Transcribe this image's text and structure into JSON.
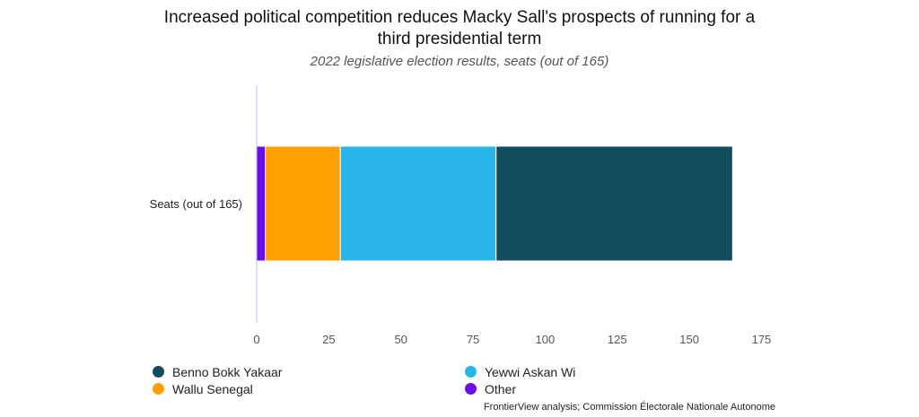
{
  "title_line1": "Increased political competition reduces Macky Sall's prospects of running for a",
  "title_line2": "third presidential term",
  "subtitle": "2022 legislative election results, seats (out of 165)",
  "source": "FrontierView analysis; Commission Électorale Nationale Autonome",
  "chart_data": {
    "type": "bar",
    "orientation": "horizontal",
    "stacked": true,
    "categories": [
      "Seats (out of 165)"
    ],
    "series": [
      {
        "name": "Other",
        "values": [
          3
        ],
        "color": "#6a0dea"
      },
      {
        "name": "Wallu Senegal",
        "values": [
          26
        ],
        "color": "#ff9f00"
      },
      {
        "name": "Yewwi Askan Wi",
        "values": [
          54
        ],
        "color": "#28b6e9"
      },
      {
        "name": "Benno Bokk Yakaar",
        "values": [
          82
        ],
        "color": "#124c5f"
      }
    ],
    "xlim": [
      0,
      175
    ],
    "xticks": [
      0,
      25,
      50,
      75,
      100,
      125,
      150,
      175
    ],
    "grid": false,
    "legend_position": "bottom"
  },
  "legend": {
    "left": [
      {
        "name": "Benno Bokk Yakaar",
        "color": "#124c5f"
      },
      {
        "name": "Wallu Senegal",
        "color": "#ff9f00"
      }
    ],
    "right": [
      {
        "name": "Yewwi Askan Wi",
        "color": "#28b6e9"
      },
      {
        "name": "Other",
        "color": "#6a0dea"
      }
    ]
  }
}
